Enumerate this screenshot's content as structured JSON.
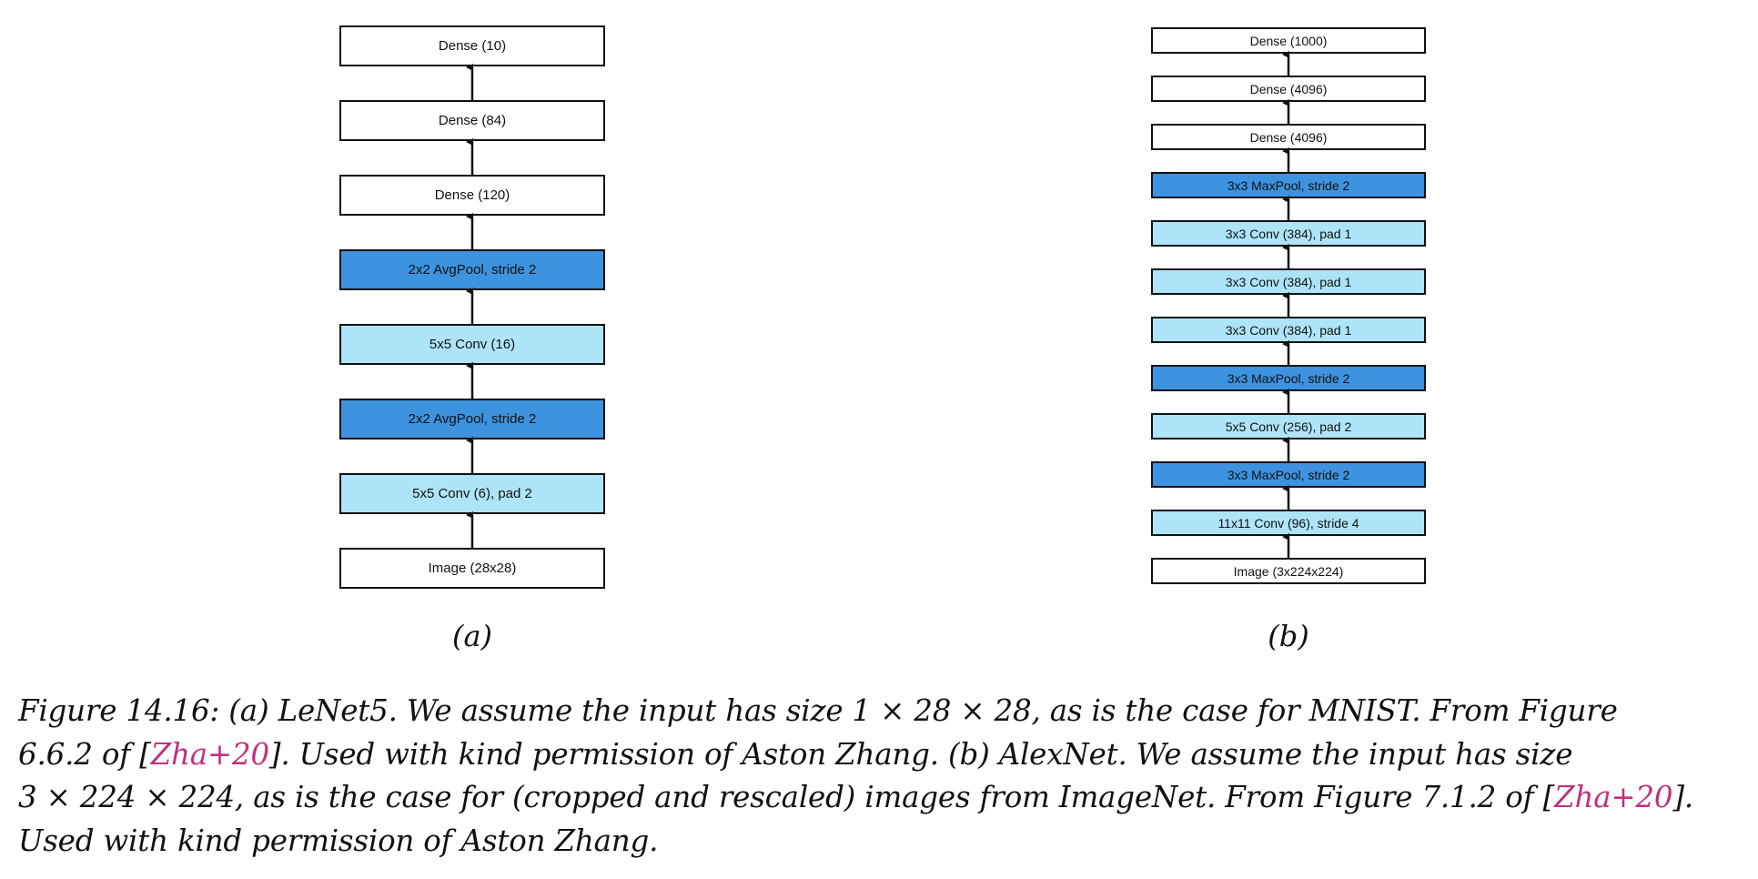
{
  "colors": {
    "plain": "#ffffff",
    "conv": "#aee4f8",
    "pool": "#3d93df",
    "border": "#111111",
    "citation": "#c0307d"
  },
  "lenet": {
    "sub_caption": "(a)",
    "layers": [
      {
        "label": "Dense (10)",
        "kind": "plain"
      },
      {
        "label": "Dense (84)",
        "kind": "plain"
      },
      {
        "label": "Dense (120)",
        "kind": "plain"
      },
      {
        "label": "2x2 AvgPool, stride 2",
        "kind": "pool"
      },
      {
        "label": "5x5 Conv (16)",
        "kind": "conv"
      },
      {
        "label": "2x2 AvgPool, stride 2",
        "kind": "pool"
      },
      {
        "label": "5x5 Conv (6), pad 2",
        "kind": "conv"
      },
      {
        "label": "Image (28x28)",
        "kind": "plain"
      }
    ]
  },
  "alexnet": {
    "sub_caption": "(b)",
    "layers": [
      {
        "label": "Dense (1000)",
        "kind": "plain"
      },
      {
        "label": "Dense (4096)",
        "kind": "plain"
      },
      {
        "label": "Dense (4096)",
        "kind": "plain"
      },
      {
        "label": "3x3 MaxPool, stride 2",
        "kind": "pool"
      },
      {
        "label": "3x3 Conv (384), pad 1",
        "kind": "conv"
      },
      {
        "label": "3x3 Conv (384), pad 1",
        "kind": "conv"
      },
      {
        "label": "3x3 Conv (384), pad 1",
        "kind": "conv"
      },
      {
        "label": "3x3 MaxPool, stride 2",
        "kind": "pool"
      },
      {
        "label": "5x5 Conv (256), pad 2",
        "kind": "conv"
      },
      {
        "label": "3x3 MaxPool, stride 2",
        "kind": "pool"
      },
      {
        "label": "11x11 Conv (96), stride 4",
        "kind": "conv"
      },
      {
        "label": "Image (3x224x224)",
        "kind": "plain"
      }
    ]
  },
  "caption": {
    "line1": "Figure 14.16: (a) LeNet5. We assume the input has size 1 × 28 × 28, as is the case for MNIST. From Figure",
    "line2_a": "6.6.2 of [",
    "line2_cite": "Zha+20",
    "line2_b": "]. Used with kind permission of Aston Zhang. (b) AlexNet. We assume the input has size",
    "line3_a": "3 × 224 × 224, as is the case for (cropped and rescaled) images from ImageNet. From Figure 7.1.2 of [",
    "line3_cite": "Zha+20",
    "line3_b": "].",
    "line4": "Used with kind permission of Aston Zhang."
  }
}
